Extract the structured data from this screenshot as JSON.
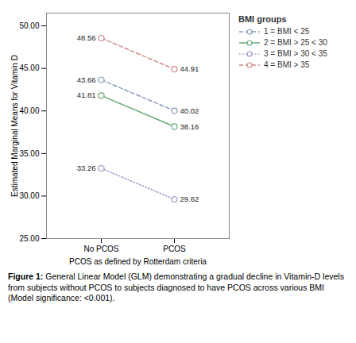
{
  "chart_data": {
    "type": "line",
    "categories": [
      "No PCOS",
      "PCOS"
    ],
    "series": [
      {
        "name": "1 = BMI < 25",
        "color": "#8899BB",
        "line_style": "dashed",
        "values": [
          43.66,
          40.02
        ]
      },
      {
        "name": "2 = BMI > 25 < 30",
        "color": "#66AA77",
        "line_style": "solid",
        "values": [
          41.81,
          38.16
        ]
      },
      {
        "name": "3 = BMI > 30 < 35",
        "color": "#9999CC",
        "line_style": "dotted",
        "values": [
          33.26,
          29.62
        ]
      },
      {
        "name": "4 = BMI > 35",
        "color": "#CC8888",
        "line_style": "dashed",
        "values": [
          48.56,
          44.91
        ]
      }
    ],
    "marker": "circle",
    "xlabel": "PCOS as defined by Rotterdam criteria",
    "ylabel": "Estimated Marginal Means for Vitamin D",
    "ylim": [
      25.0,
      51.5
    ],
    "yticks": [
      {
        "value": 25.0,
        "label": "25.00"
      },
      {
        "value": 30.0,
        "label": "30.00"
      },
      {
        "value": 35.0,
        "label": "35.00"
      },
      {
        "value": 40.0,
        "label": "40.00"
      },
      {
        "value": 45.0,
        "label": "45.00"
      },
      {
        "value": 50.0,
        "label": "50.00"
      }
    ],
    "grid": false,
    "legend": "right",
    "legend_title": "BMI groups",
    "data_labels": true,
    "caption_title": "Figure 1:",
    "caption": "General Linear Model (GLM) demonstrating a gradual decline in Vitamin-D levels from subjects without PCOS to subjects diagnosed to have PCOS across various BMI (Model significance: <0.001)."
  }
}
